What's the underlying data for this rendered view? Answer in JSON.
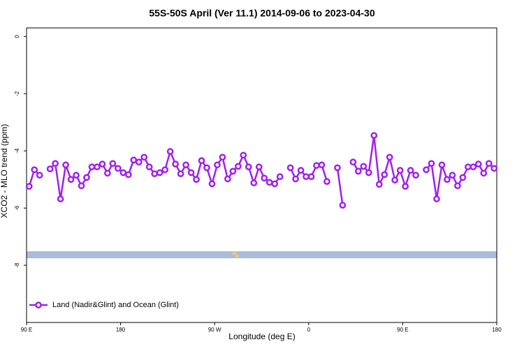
{
  "chart_data": {
    "type": "line",
    "title": "55S-50S April (Ver 11.1)   2014-09-06 to 2023-04-30",
    "x_label": "Longitude (deg E)",
    "y_label": "XCO2 - MLO trend (ppm)",
    "xlim": [
      90,
      540
    ],
    "ylim": [
      -10,
      0.3
    ],
    "xticks": [
      {
        "value": 90,
        "label": "90 E"
      },
      180,
      {
        "value": 270,
        "label": "90 W"
      },
      {
        "value": 360,
        "label": "0"
      },
      {
        "value": 450,
        "label": "90 E"
      },
      {
        "value": 540,
        "label": "180"
      }
    ],
    "yticks": [
      0,
      -2,
      -4,
      -6,
      -8
    ],
    "legend": "bottom-left",
    "x": [
      92.5,
      97.5,
      102.5,
      107.5,
      112.5,
      117.5,
      122.5,
      127.5,
      132.5,
      137.5,
      142.5,
      147.5,
      152.5,
      157.5,
      162.5,
      167.5,
      172.5,
      177.5,
      182.5,
      187.5,
      192.5,
      197.5,
      202.5,
      207.5,
      212.5,
      217.5,
      222.5,
      227.5,
      232.5,
      237.5,
      242.5,
      247.5,
      252.5,
      257.5,
      262.5,
      267.5,
      272.5,
      277.5,
      282.5,
      287.5,
      292.5,
      297.5,
      302.5,
      307.5,
      312.5,
      317.5,
      322.5,
      327.5,
      332.5,
      337.5,
      342.5,
      347.5,
      352.5,
      357.5,
      362.5,
      367.5,
      372.5,
      377.5,
      382.5,
      387.5,
      392.5,
      397.5,
      402.5,
      407.5,
      412.5,
      417.5,
      422.5,
      427.5,
      432.5,
      437.5,
      442.5,
      447.5,
      452.5,
      457.5,
      462.5,
      467.5,
      472.5,
      477.5,
      482.5,
      487.5,
      492.5,
      497.5,
      502.5,
      507.5,
      512.5,
      517.5,
      522.5,
      527.5,
      532.5,
      537.5
    ],
    "series": [
      {
        "name": "Land (Nadir&Glint) and Ocean (Glint)",
        "color": "#a020f0",
        "values": [
          -5.24,
          -4.66,
          -4.85,
          null,
          -4.63,
          -4.44,
          -5.68,
          -4.49,
          -5.0,
          -4.85,
          -5.22,
          -4.93,
          -4.56,
          -4.56,
          -4.46,
          -4.78,
          -4.44,
          -4.61,
          -4.76,
          -4.83,
          -4.32,
          -4.39,
          -4.22,
          -4.56,
          -4.8,
          -4.76,
          -4.66,
          -4.02,
          -4.46,
          -4.8,
          -4.49,
          -4.76,
          -5.0,
          -4.34,
          -4.59,
          -5.15,
          -4.49,
          -4.22,
          -4.98,
          -4.71,
          -4.54,
          -4.15,
          -4.56,
          -5.12,
          -4.56,
          -4.95,
          -5.1,
          -5.15,
          -4.9,
          null,
          -4.59,
          -4.98,
          -4.68,
          -4.9,
          -4.9,
          -4.51,
          -4.49,
          -5.07,
          null,
          -4.59,
          -5.9,
          null,
          -4.39,
          -4.71,
          -4.54,
          -4.76,
          -3.46,
          -5.17,
          -4.83,
          -4.22,
          -5.02,
          -4.68,
          -5.24,
          -4.68,
          -4.85,
          null,
          -4.66,
          -4.44,
          -5.68,
          -4.49,
          -5.0,
          -4.85,
          -5.22,
          -4.93,
          -4.56,
          -4.56,
          -4.46,
          -4.78,
          -4.44,
          -4.61
        ]
      }
    ]
  }
}
